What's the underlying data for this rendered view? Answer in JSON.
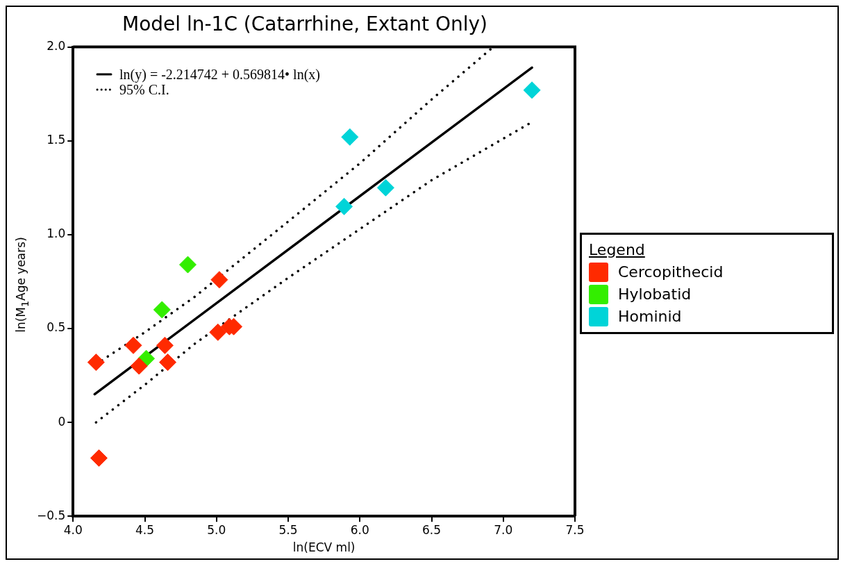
{
  "chart_data": {
    "type": "scatter",
    "title": "Model ln-1C (Catarrhine, Extant Only)",
    "xlabel": "ln(ECV ml)",
    "ylabel": "ln(M$_{1}$Age years)",
    "legend_title": "Legend",
    "legend": "right",
    "marker": "diamond",
    "grid": false,
    "xlim": [
      4.0,
      7.5
    ],
    "xticks": [
      {
        "value": 4,
        "label": "4.0"
      },
      4.5,
      {
        "value": 5,
        "label": "5.0"
      },
      5.5,
      {
        "value": 6,
        "label": "6.0"
      },
      6.5,
      {
        "value": 7,
        "label": "7.0"
      },
      7.5
    ],
    "ylim": [
      -0.5,
      2.0
    ],
    "yticks": [
      {
        "value": -0.5,
        "label": "−0.5"
      },
      0,
      0.5,
      {
        "value": 1,
        "label": "1.0"
      },
      1.5,
      {
        "value": 2,
        "label": "2.0"
      }
    ],
    "series": [
      {
        "name": "Cercopithecid",
        "color": "#ff2a00",
        "x": [
          4.16,
          4.18,
          4.42,
          4.46,
          4.64,
          4.66,
          5.02,
          5.01,
          5.09,
          5.12
        ],
        "values": [
          0.32,
          -0.19,
          0.41,
          0.3,
          0.41,
          0.32,
          0.76,
          0.48,
          0.51,
          0.51
        ]
      },
      {
        "name": "Hylobatid",
        "color": "#33ee00",
        "x": [
          4.51,
          4.62,
          4.8
        ],
        "values": [
          0.34,
          0.6,
          0.84
        ]
      },
      {
        "name": "Hominid",
        "color": "#00d4d8",
        "x": [
          5.93,
          5.89,
          6.18,
          7.2
        ],
        "values": [
          1.52,
          1.15,
          1.25,
          1.77
        ]
      },
      {
        "name": "ln(y) = -2.214742 + 0.569814• ln(x)",
        "type": "line",
        "marker": "none",
        "line_style": "solid",
        "color": "#000000",
        "x": [
          4.15,
          7.2
        ],
        "values": [
          0.15,
          1.89
        ]
      },
      {
        "name": "95% C.I.",
        "type": "line",
        "marker": "none",
        "line_style": "dotted",
        "color": "#000000",
        "x": [
          4.16,
          4.5,
          4.85,
          5.5,
          6.0,
          6.5,
          6.93
        ],
        "values": [
          0.31,
          0.48,
          0.67,
          1.07,
          1.38,
          1.72,
          2.0
        ]
      },
      {
        "type": "line",
        "marker": "none",
        "line_style": "dotted",
        "color": "#000000",
        "x": [
          4.16,
          4.5,
          4.85,
          5.5,
          6.0,
          6.5,
          7.2
        ],
        "values": [
          0.0,
          0.2,
          0.42,
          0.77,
          1.03,
          1.29,
          1.6
        ]
      }
    ]
  }
}
